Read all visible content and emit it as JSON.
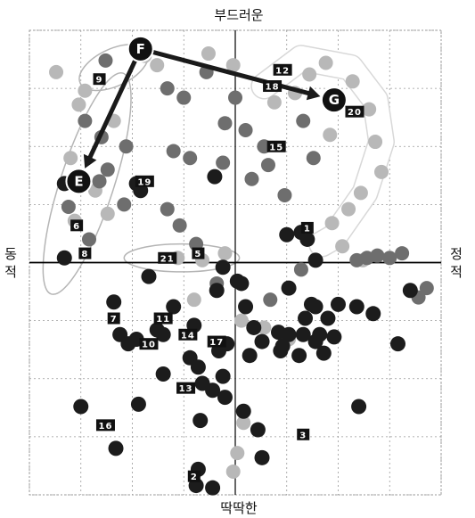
{
  "chart_data": {
    "type": "scatter",
    "title": "",
    "axis_labels": {
      "top": "부드러운",
      "bottom": "딱딱한",
      "left": "동적",
      "right": "정적"
    },
    "xlim": [
      -10,
      10
    ],
    "ylim": [
      -10,
      10
    ],
    "grid": true,
    "colors": {
      "dark_point": "#1c1c1c",
      "mid_point": "#6e6e6e",
      "light_point": "#b8b8b8",
      "arrow": "#1a1a1a",
      "axis": "#000000",
      "grid": "#9a9a9a",
      "badge": "#111111",
      "cluster_outline": "#b5b5b5"
    },
    "points": {
      "dark": [
        [
          -8.3,
          3.4
        ],
        [
          -8.3,
          0.2
        ],
        [
          -4.8,
          3.4
        ],
        [
          -4.6,
          3.1
        ],
        [
          -5.9,
          -1.7
        ],
        [
          -5.6,
          -3.1
        ],
        [
          -5.2,
          -3.5
        ],
        [
          -4.8,
          -3.3
        ],
        [
          -3.8,
          -2.9
        ],
        [
          -3.5,
          -3.1
        ],
        [
          -3.5,
          -4.8
        ],
        [
          -4.7,
          -6.1
        ],
        [
          -7.5,
          -6.2
        ],
        [
          -5.8,
          -8.0
        ],
        [
          -3.0,
          -1.9
        ],
        [
          -2.0,
          -2.7
        ],
        [
          -2.2,
          -4.1
        ],
        [
          -1.8,
          -4.5
        ],
        [
          -1.6,
          -5.2
        ],
        [
          -0.8,
          -3.8
        ],
        [
          -0.6,
          -4.9
        ],
        [
          -1.1,
          -5.5
        ],
        [
          -0.5,
          -5.8
        ],
        [
          0.3,
          -0.9
        ],
        [
          0.5,
          -1.9
        ],
        [
          -0.6,
          -0.2
        ],
        [
          -0.9,
          -1.2
        ],
        [
          0.9,
          -2.8
        ],
        [
          1.3,
          -3.4
        ],
        [
          0.7,
          -4.0
        ],
        [
          0.4,
          -6.4
        ],
        [
          1.1,
          -7.2
        ],
        [
          1.3,
          -8.4
        ],
        [
          2.1,
          -3.0
        ],
        [
          2.3,
          -3.6
        ],
        [
          2.6,
          -3.1
        ],
        [
          2.2,
          -3.8
        ],
        [
          2.6,
          -1.1
        ],
        [
          3.1,
          -4.0
        ],
        [
          3.3,
          -3.1
        ],
        [
          3.4,
          -2.4
        ],
        [
          3.7,
          -1.8
        ],
        [
          3.9,
          -3.4
        ],
        [
          4.1,
          -3.1
        ],
        [
          4.3,
          -3.9
        ],
        [
          4.5,
          -2.4
        ],
        [
          4.8,
          -3.2
        ],
        [
          5.0,
          -1.8
        ],
        [
          5.9,
          -1.9
        ],
        [
          6.7,
          -2.2
        ],
        [
          7.9,
          -3.5
        ],
        [
          8.5,
          -1.2
        ],
        [
          3.9,
          -1.9
        ],
        [
          -1.9,
          -9.6
        ],
        [
          -1.7,
          -6.8
        ],
        [
          -1.8,
          -8.9
        ],
        [
          -1.1,
          -9.7
        ],
        [
          0.1,
          -0.8
        ],
        [
          2.5,
          1.2
        ],
        [
          3.2,
          1.3
        ],
        [
          3.5,
          1.0
        ],
        [
          3.9,
          0.1
        ],
        [
          6.0,
          -6.2
        ],
        [
          -1.0,
          3.7
        ],
        [
          -4.2,
          -0.6
        ],
        [
          -0.4,
          -3.5
        ]
      ],
      "mid": [
        [
          -6.3,
          8.7
        ],
        [
          -3.3,
          7.5
        ],
        [
          -2.5,
          7.1
        ],
        [
          -1.4,
          8.2
        ],
        [
          -0.5,
          6.0
        ],
        [
          -3.0,
          4.8
        ],
        [
          -2.2,
          4.5
        ],
        [
          -5.3,
          5.0
        ],
        [
          -7.3,
          6.1
        ],
        [
          -6.5,
          5.4
        ],
        [
          -6.2,
          4.0
        ],
        [
          -6.6,
          3.5
        ],
        [
          -8.1,
          2.4
        ],
        [
          -7.1,
          1.0
        ],
        [
          -5.4,
          2.5
        ],
        [
          -3.3,
          2.3
        ],
        [
          -2.7,
          1.6
        ],
        [
          -1.9,
          0.8
        ],
        [
          -0.6,
          4.3
        ],
        [
          0.0,
          7.1
        ],
        [
          0.5,
          5.7
        ],
        [
          1.4,
          5.0
        ],
        [
          2.4,
          2.9
        ],
        [
          1.6,
          4.2
        ],
        [
          0.8,
          3.6
        ],
        [
          3.3,
          6.1
        ],
        [
          3.8,
          4.5
        ],
        [
          5.9,
          0.1
        ],
        [
          6.4,
          0.2
        ],
        [
          6.9,
          0.3
        ],
        [
          7.5,
          0.2
        ],
        [
          8.1,
          0.4
        ],
        [
          9.3,
          -1.1
        ],
        [
          8.9,
          -1.5
        ],
        [
          -0.9,
          -0.9
        ],
        [
          1.7,
          -1.6
        ],
        [
          3.2,
          -0.3
        ]
      ],
      "light": [
        [
          -7.6,
          6.8
        ],
        [
          -8.0,
          4.5
        ],
        [
          -6.8,
          3.1
        ],
        [
          -7.8,
          1.8
        ],
        [
          -6.2,
          2.1
        ],
        [
          -5.9,
          6.1
        ],
        [
          -7.3,
          7.4
        ],
        [
          -4.4,
          8.9
        ],
        [
          -1.3,
          9.0
        ],
        [
          -0.1,
          8.5
        ],
        [
          1.9,
          6.9
        ],
        [
          2.9,
          7.3
        ],
        [
          3.6,
          8.1
        ],
        [
          4.4,
          8.6
        ],
        [
          5.7,
          7.8
        ],
        [
          6.5,
          6.6
        ],
        [
          6.8,
          5.2
        ],
        [
          7.1,
          3.9
        ],
        [
          6.1,
          3.0
        ],
        [
          5.5,
          2.3
        ],
        [
          4.7,
          1.7
        ],
        [
          5.2,
          0.7
        ],
        [
          4.6,
          5.5
        ],
        [
          -2.8,
          0.2
        ],
        [
          -1.6,
          0.1
        ],
        [
          -0.5,
          0.4
        ],
        [
          6.2,
          0.1
        ],
        [
          -2.0,
          -1.6
        ],
        [
          0.3,
          -2.5
        ],
        [
          2.6,
          -3.3
        ],
        [
          1.4,
          -2.8
        ],
        [
          -0.1,
          -9.0
        ],
        [
          0.4,
          -6.9
        ],
        [
          0.1,
          -8.2
        ],
        [
          -8.7,
          8.2
        ],
        [
          -3.8,
          8.5
        ]
      ]
    },
    "clusters": [
      {
        "id": "F",
        "x": -4.6,
        "y": 9.2,
        "label": "F"
      },
      {
        "id": "E",
        "x": -7.6,
        "y": 3.5,
        "label": "E"
      },
      {
        "id": "G",
        "x": 4.8,
        "y": 7.0,
        "label": "G"
      }
    ],
    "arrows": [
      {
        "from": "F",
        "to": "G"
      },
      {
        "from": "F",
        "to": "E"
      }
    ],
    "labels": [
      {
        "text": "12",
        "x": 2.3,
        "y": 8.3
      },
      {
        "text": "18",
        "x": 1.8,
        "y": 7.6
      },
      {
        "text": "20",
        "x": 5.8,
        "y": 6.5
      },
      {
        "text": "15",
        "x": 2.0,
        "y": 5.0
      },
      {
        "text": "19",
        "x": -4.4,
        "y": 3.5
      },
      {
        "text": "6",
        "x": -7.7,
        "y": 1.6
      },
      {
        "text": "8",
        "x": -7.3,
        "y": 0.4
      },
      {
        "text": "1",
        "x": 3.5,
        "y": 1.5
      },
      {
        "text": "21",
        "x": -3.3,
        "y": 0.2
      },
      {
        "text": "5",
        "x": -1.8,
        "y": 0.4
      },
      {
        "text": "7",
        "x": -5.9,
        "y": -2.4
      },
      {
        "text": "11",
        "x": -3.5,
        "y": -2.4
      },
      {
        "text": "10",
        "x": -4.2,
        "y": -3.5
      },
      {
        "text": "14",
        "x": -2.3,
        "y": -3.1
      },
      {
        "text": "17",
        "x": -0.9,
        "y": -3.4
      },
      {
        "text": "13",
        "x": -2.4,
        "y": -5.4
      },
      {
        "text": "16",
        "x": -6.3,
        "y": -7.0
      },
      {
        "text": "3",
        "x": 3.3,
        "y": -7.4
      },
      {
        "text": "2",
        "x": -2.0,
        "y": -9.2
      },
      {
        "text": "9",
        "x": -6.6,
        "y": 7.9
      }
    ],
    "outlines": [
      {
        "name": "F-cluster",
        "cx": -5.9,
        "cy": 8.4,
        "rx": 1.8,
        "ry": 0.8,
        "rot": -25
      },
      {
        "name": "E-cluster",
        "cx": -7.2,
        "cy": 3.4,
        "rx": 1.3,
        "ry": 5.0,
        "rot": 18
      },
      {
        "name": "5-21-cluster",
        "cx": -2.6,
        "cy": 0.2,
        "rx": 2.8,
        "ry": 0.6,
        "rot": 0
      }
    ],
    "tube": [
      [
        1.4,
        7.6
      ],
      [
        3.2,
        8.8
      ],
      [
        5.6,
        8.4
      ],
      [
        6.8,
        7.0
      ],
      [
        7.1,
        5.2
      ],
      [
        6.3,
        3.0
      ],
      [
        4.8,
        1.1
      ],
      [
        4.2,
        0.8
      ]
    ]
  }
}
